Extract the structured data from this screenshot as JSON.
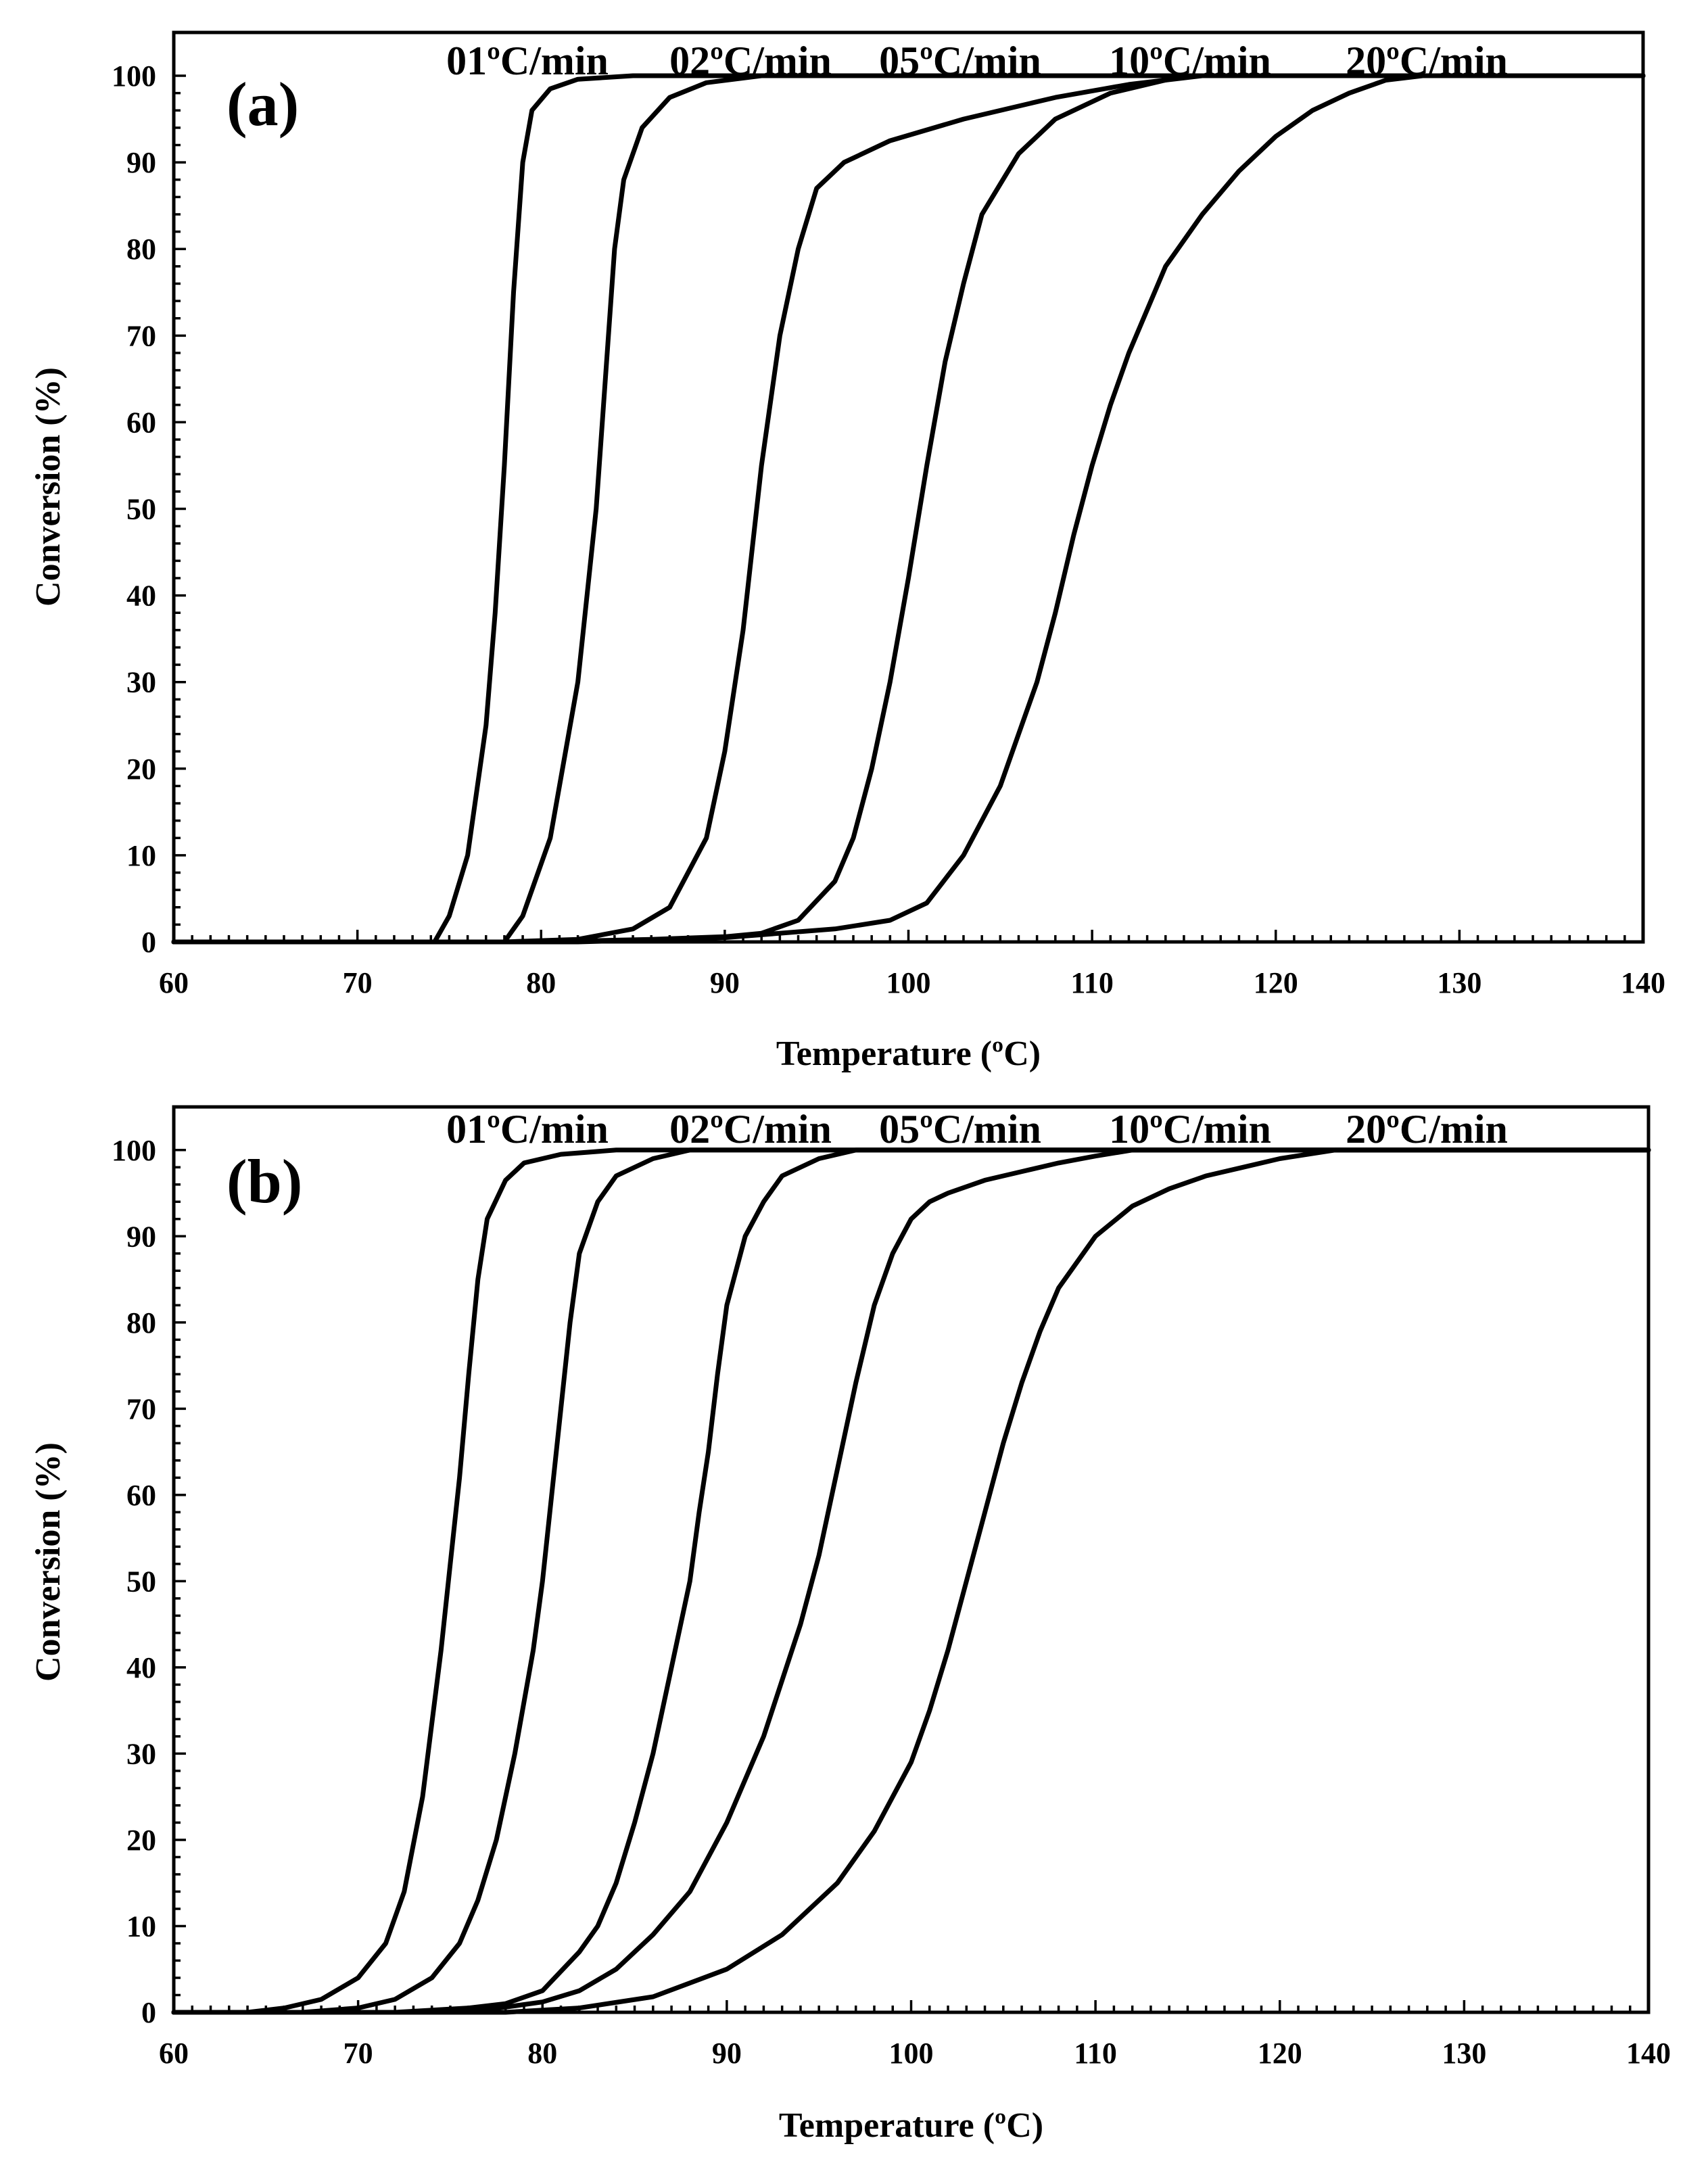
{
  "chart_data": [
    {
      "type": "line",
      "panel_label": "(a)",
      "xlabel": "Temperature (ºC)",
      "ylabel": "Conversion (%)",
      "xlim": [
        60,
        140
      ],
      "ylim": [
        0,
        105
      ],
      "xticks": [
        60,
        70,
        80,
        90,
        100,
        110,
        120,
        130,
        140
      ],
      "yticks": [
        0,
        10,
        20,
        30,
        40,
        50,
        60,
        70,
        80,
        90,
        100
      ],
      "grid": false,
      "legend": "top",
      "series": [
        {
          "name": "01ºC/min",
          "x": [
            60,
            74.2,
            75,
            76,
            77,
            77.5,
            78,
            78.5,
            79,
            79.5,
            80.5,
            82,
            85,
            140
          ],
          "y": [
            0,
            0,
            3,
            10,
            25,
            38,
            55,
            75,
            90,
            96,
            98.5,
            99.6,
            100,
            100
          ]
        },
        {
          "name": "02ºC/min",
          "x": [
            60,
            78,
            79,
            80.5,
            82,
            83,
            83.5,
            84,
            84.5,
            85.5,
            87,
            89,
            92,
            140
          ],
          "y": [
            0,
            0,
            3,
            12,
            30,
            50,
            65,
            80,
            88,
            94,
            97.5,
            99.2,
            100,
            100
          ]
        },
        {
          "name": "05ºC/min",
          "x": [
            60,
            78,
            82,
            85,
            87,
            89,
            90,
            91,
            92,
            93,
            94,
            95,
            96.5,
            99,
            103,
            108,
            112,
            116,
            140
          ],
          "y": [
            0,
            0,
            0.3,
            1.5,
            4,
            12,
            22,
            36,
            55,
            70,
            80,
            87,
            90,
            92.5,
            95,
            97.5,
            99,
            100,
            100
          ]
        },
        {
          "name": "10ºC/min",
          "x": [
            60,
            80,
            86,
            90,
            92,
            94,
            96,
            97,
            98,
            99,
            100,
            101,
            102,
            103,
            104,
            106,
            108,
            111,
            115,
            140
          ],
          "y": [
            0,
            0,
            0.3,
            0.6,
            1,
            2.5,
            7,
            12,
            20,
            30,
            42,
            55,
            67,
            76,
            84,
            91,
            95,
            98,
            100,
            100
          ]
        },
        {
          "name": "20ºC/min",
          "x": [
            60,
            82,
            90,
            96,
            99,
            101,
            103,
            105,
            107,
            108,
            109,
            110,
            111,
            112,
            114,
            116,
            118,
            120,
            122,
            124,
            126,
            128,
            140
          ],
          "y": [
            0,
            0,
            0.5,
            1.5,
            2.5,
            4.5,
            10,
            18,
            30,
            38,
            47,
            55,
            62,
            68,
            78,
            84,
            89,
            93,
            96,
            98,
            99.5,
            100,
            100
          ]
        }
      ]
    },
    {
      "type": "line",
      "panel_label": "(b)",
      "xlabel": "Temperature (ºC)",
      "ylabel": "Conversion (%)",
      "xlim": [
        60,
        140
      ],
      "ylim": [
        0,
        105
      ],
      "xticks": [
        60,
        70,
        80,
        90,
        100,
        110,
        120,
        130,
        140
      ],
      "yticks": [
        0,
        10,
        20,
        30,
        40,
        50,
        60,
        70,
        80,
        90,
        100
      ],
      "grid": false,
      "legend": "top",
      "series": [
        {
          "name": "01ºC/min",
          "x": [
            60,
            64,
            66,
            68,
            70,
            71.5,
            72.5,
            73.5,
            74.5,
            75,
            75.5,
            76,
            76.5,
            77,
            78,
            79,
            81,
            84,
            140
          ],
          "y": [
            0,
            0,
            0.5,
            1.5,
            4,
            8,
            14,
            25,
            42,
            52,
            62,
            74,
            85,
            92,
            96.5,
            98.5,
            99.5,
            100,
            100
          ]
        },
        {
          "name": "02ºC/min",
          "x": [
            60,
            67,
            70,
            72,
            74,
            75.5,
            76.5,
            77.5,
            78.5,
            79.5,
            80,
            80.5,
            81,
            81.5,
            82,
            83,
            84,
            86,
            88,
            140
          ],
          "y": [
            0,
            0,
            0.5,
            1.5,
            4,
            8,
            13,
            20,
            30,
            42,
            50,
            60,
            70,
            80,
            88,
            94,
            97,
            99,
            100,
            100
          ]
        },
        {
          "name": "05ºC/min",
          "x": [
            60,
            72,
            76,
            78,
            80,
            82,
            83,
            84,
            85,
            86,
            87,
            88,
            88.5,
            89,
            89.5,
            90,
            91,
            92,
            93,
            95,
            97,
            140
          ],
          "y": [
            0,
            0,
            0.5,
            1,
            2.5,
            7,
            10,
            15,
            22,
            30,
            40,
            50,
            58,
            65,
            74,
            82,
            90,
            94,
            97,
            99,
            100,
            100
          ]
        },
        {
          "name": "10ºC/min",
          "x": [
            60,
            75,
            78,
            80,
            82,
            84,
            86,
            88,
            90,
            92,
            94,
            95,
            96,
            97,
            98,
            99,
            100,
            101,
            102,
            104,
            106,
            108,
            110,
            112,
            140
          ],
          "y": [
            0,
            0,
            0.6,
            1.2,
            2.5,
            5,
            9,
            14,
            22,
            32,
            45,
            53,
            63,
            73,
            82,
            88,
            92,
            94,
            95,
            96.5,
            97.5,
            98.5,
            99.3,
            100,
            100
          ]
        },
        {
          "name": "20ºC/min",
          "x": [
            60,
            78,
            82,
            86,
            90,
            93,
            96,
            98,
            100,
            101,
            102,
            103,
            104,
            105,
            106,
            107,
            108,
            110,
            112,
            114,
            116,
            118,
            120,
            123,
            140
          ],
          "y": [
            0,
            0,
            0.5,
            1.8,
            5,
            9,
            15,
            21,
            29,
            35,
            42,
            50,
            58,
            66,
            73,
            79,
            84,
            90,
            93.5,
            95.5,
            97,
            98,
            99,
            100,
            100
          ]
        }
      ]
    }
  ]
}
